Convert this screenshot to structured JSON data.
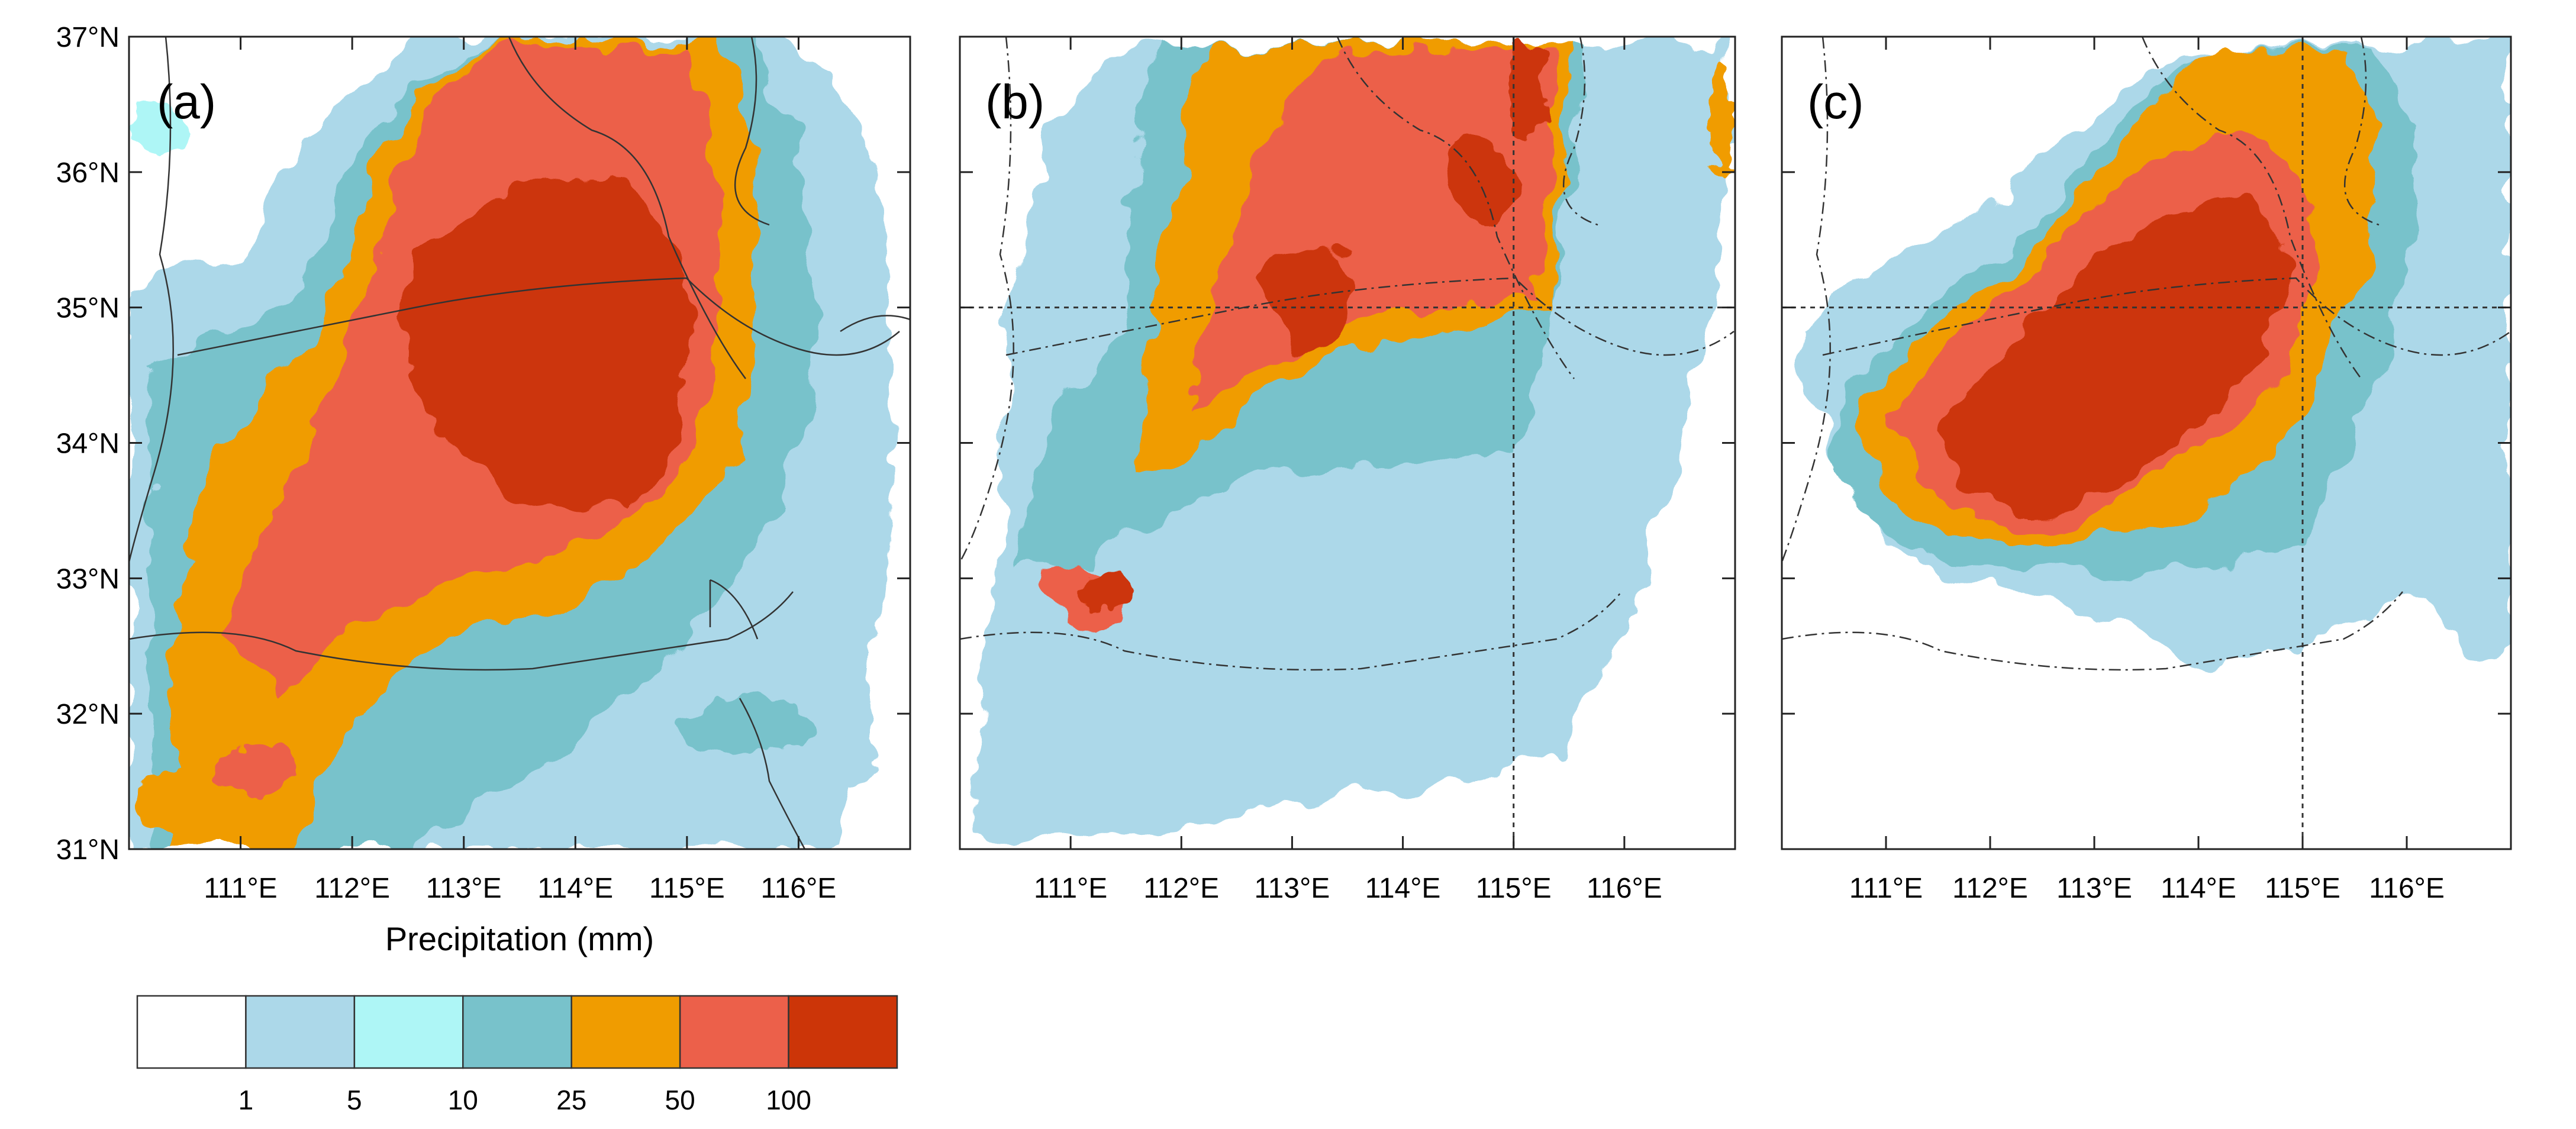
{
  "panels": [
    {
      "id": "a",
      "label": "(a)",
      "show_lat_labels": true
    },
    {
      "id": "b",
      "label": "(b)",
      "show_lat_labels": false
    },
    {
      "id": "c",
      "label": "(c)",
      "show_lat_labels": false
    }
  ],
  "map_extent": {
    "lon_min": 110,
    "lon_max": 117,
    "lat_min": 31,
    "lat_max": 37
  },
  "lat_ticks": [
    {
      "value": 31,
      "label": "31°N"
    },
    {
      "value": 32,
      "label": "32°N"
    },
    {
      "value": 33,
      "label": "33°N"
    },
    {
      "value": 34,
      "label": "34°N"
    },
    {
      "value": 35,
      "label": "35°N"
    },
    {
      "value": 36,
      "label": "36°N"
    },
    {
      "value": 37,
      "label": "37°N"
    }
  ],
  "lon_ticks": [
    {
      "value": 111,
      "label": "111°E"
    },
    {
      "value": 112,
      "label": "112°E"
    },
    {
      "value": 113,
      "label": "113°E"
    },
    {
      "value": 114,
      "label": "114°E"
    },
    {
      "value": 115,
      "label": "115°E"
    },
    {
      "value": 116,
      "label": "116°E"
    }
  ],
  "reference_lines": {
    "panels": [
      "b",
      "c"
    ],
    "lat": 35,
    "lon": 115
  },
  "x_axis_title": "Precipitation (mm)",
  "colorbar": {
    "colors": [
      "#ffffff",
      "#acd8e9",
      "#aef6f6",
      "#78c2cb",
      "#f09c00",
      "#ec604a",
      "#cc3508"
    ],
    "tick_labels": [
      "1",
      "5",
      "10",
      "25",
      "50",
      "100"
    ]
  }
}
